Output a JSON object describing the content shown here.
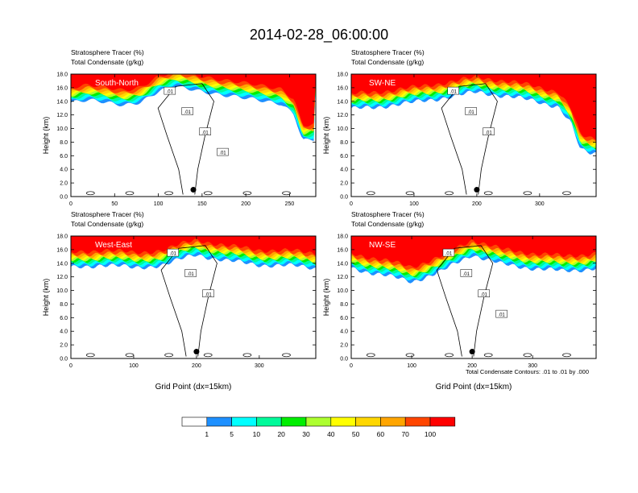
{
  "figure": {
    "title": "2014-02-28_06:00:00",
    "footer_note": "Total Condensate Contours: .01 to .01 by .000"
  },
  "colors": {
    "levels": [
      "#ffffff",
      "#1e90ff",
      "#00ffff",
      "#00fa9a",
      "#00ee00",
      "#adff2f",
      "#ffff00",
      "#ffd700",
      "#ffa500",
      "#ff4500",
      "#ff0000"
    ],
    "contour": "#000000"
  },
  "colorbar": {
    "labels": [
      "1",
      "5",
      "10",
      "20",
      "30",
      "40",
      "50",
      "60",
      "70",
      "100"
    ]
  },
  "chart_data": [
    {
      "type": "heatmap",
      "panel": "South-North",
      "subtitle_line1": "Stratosphere Tracer   (%)",
      "subtitle_line2": "Total Condensate   (g/kg)",
      "ylabel": "Height (km)",
      "xlabel": "",
      "xlim": [
        0,
        280
      ],
      "ylim": [
        0,
        18
      ],
      "xticks": [
        "0",
        "50",
        "100",
        "150",
        "200",
        "250"
      ],
      "yticks": [
        "0.0",
        "2.0",
        "4.0",
        "6.0",
        "8.0",
        "10.0",
        "12.0",
        "14.0",
        "16.0",
        "18.0"
      ],
      "marker_x": 140,
      "contour_labels": [
        ".01",
        ".01",
        ".01",
        ".01"
      ],
      "tropopause_profile": {
        "x": [
          0,
          20,
          40,
          60,
          80,
          100,
          120,
          140,
          160,
          180,
          200,
          220,
          240,
          255,
          265,
          270,
          280
        ],
        "y": [
          15.0,
          15.2,
          15.0,
          14.8,
          15.2,
          16.5,
          17.2,
          17.0,
          16.6,
          16.0,
          15.5,
          15.2,
          15.0,
          13.5,
          9.5,
          9.5,
          9.5
        ]
      }
    },
    {
      "type": "heatmap",
      "panel": "SW-NE",
      "subtitle_line1": "Stratosphere Tracer   (%)",
      "subtitle_line2": "Total Condensate   (g/kg)",
      "ylabel": "Height (km)",
      "xlabel": "",
      "xlim": [
        0,
        390
      ],
      "ylim": [
        0,
        18
      ],
      "xticks": [
        "0",
        "100",
        "200",
        "300"
      ],
      "yticks": [
        "0.0",
        "2.0",
        "4.0",
        "6.0",
        "8.0",
        "10.0",
        "12.0",
        "14.0",
        "16.0",
        "18.0"
      ],
      "marker_x": 200,
      "contour_labels": [
        ".01",
        ".01",
        ".01"
      ],
      "tropopause_profile": {
        "x": [
          0,
          50,
          100,
          150,
          200,
          250,
          300,
          330,
          350,
          365,
          380,
          390
        ],
        "y": [
          14.0,
          14.5,
          15.0,
          15.8,
          16.5,
          16.0,
          15.0,
          14.5,
          12.0,
          8.0,
          7.5,
          7.5
        ]
      }
    },
    {
      "type": "heatmap",
      "panel": "West-East",
      "subtitle_line1": "Stratosphere Tracer   (%)",
      "subtitle_line2": "Total Condensate   (g/kg)",
      "ylabel": "Height (km)",
      "xlabel": "Grid Point (dx=15km)",
      "xlim": [
        0,
        390
      ],
      "ylim": [
        0,
        18
      ],
      "xticks": [
        "0",
        "100",
        "200",
        "300"
      ],
      "yticks": [
        "0.0",
        "2.0",
        "4.0",
        "6.0",
        "8.0",
        "10.0",
        "12.0",
        "14.0",
        "16.0",
        "18.0"
      ],
      "marker_x": 200,
      "contour_labels": [
        ".01",
        ".01",
        ".01"
      ],
      "tropopause_profile": {
        "x": [
          0,
          50,
          100,
          150,
          200,
          250,
          300,
          350,
          390
        ],
        "y": [
          14.5,
          15.0,
          14.5,
          15.0,
          16.5,
          15.5,
          15.0,
          14.8,
          14.5
        ]
      }
    },
    {
      "type": "heatmap",
      "panel": "NW-SE",
      "subtitle_line1": "Stratosphere Tracer   (%)",
      "subtitle_line2": "Total Condensate   (g/kg)",
      "ylabel": "Height (km)",
      "xlabel": "Grid Point (dx=15km)",
      "xlim": [
        0,
        405
      ],
      "ylim": [
        0,
        18
      ],
      "xticks": [
        "0",
        "100",
        "200",
        "300"
      ],
      "yticks": [
        "0.0",
        "2.0",
        "4.0",
        "6.0",
        "8.0",
        "10.0",
        "12.0",
        "14.0",
        "16.0",
        "18.0"
      ],
      "marker_x": 200,
      "contour_labels": [
        ".01",
        ".01",
        ".01",
        ".01"
      ],
      "tropopause_profile": {
        "x": [
          0,
          50,
          100,
          150,
          200,
          250,
          300,
          350,
          405
        ],
        "y": [
          14.5,
          13.5,
          12.5,
          14.0,
          16.5,
          15.0,
          14.5,
          14.0,
          14.5
        ]
      }
    }
  ]
}
